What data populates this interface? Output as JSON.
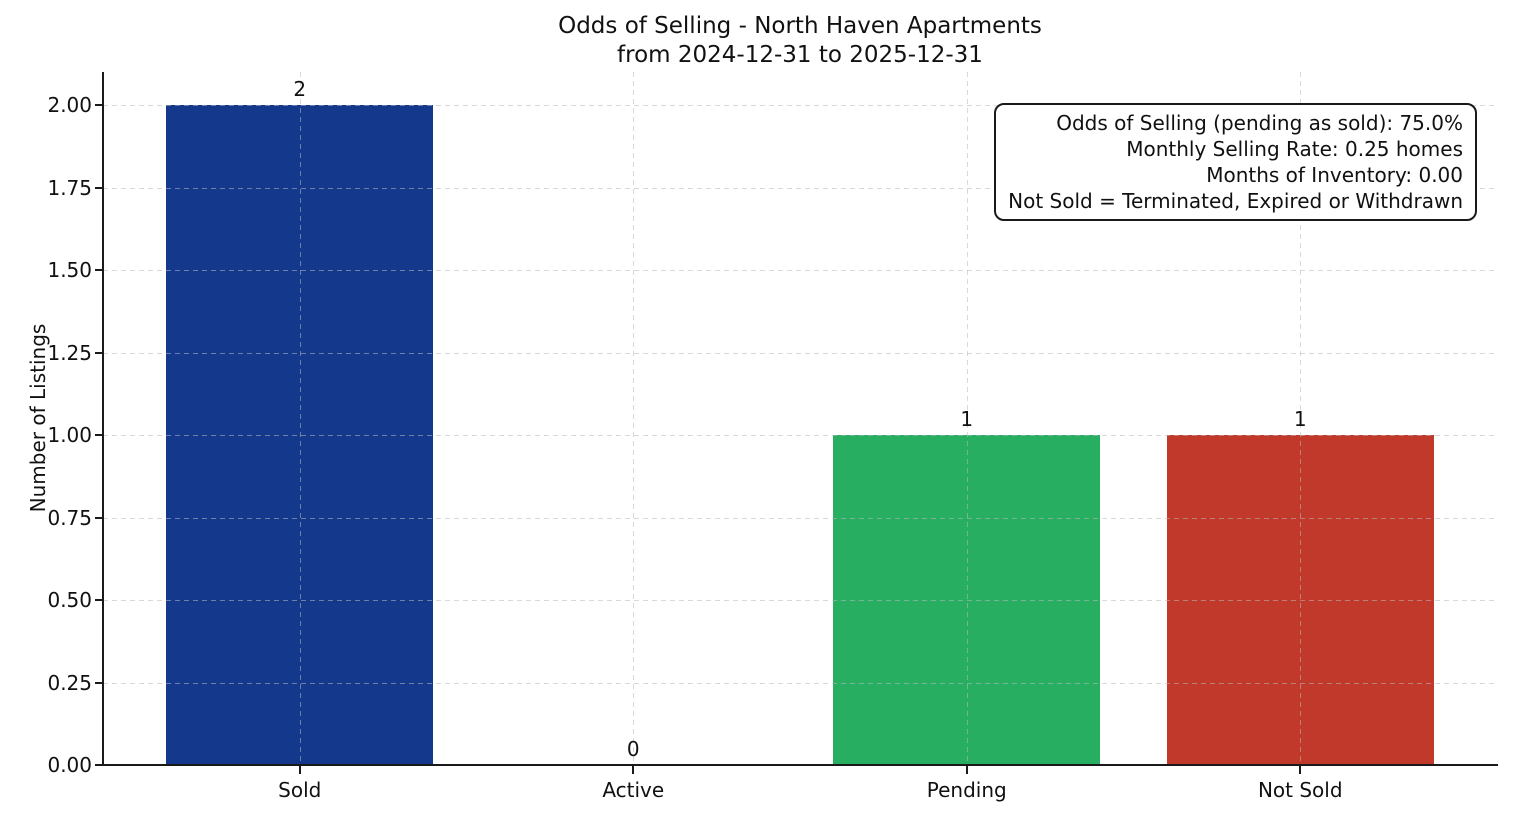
{
  "chart_data": {
    "type": "bar",
    "title": "Odds of Selling - North Haven Apartments",
    "subtitle": "from 2024-12-31 to 2025-12-31",
    "categories": [
      "Sold",
      "Active",
      "Pending",
      "Not Sold"
    ],
    "values": [
      2,
      0,
      1,
      1
    ],
    "value_labels": [
      "2",
      "0",
      "1",
      "1"
    ],
    "bar_colors": [
      "#14388c",
      null,
      "#27ae60",
      "#c0392b"
    ],
    "xlabel": "",
    "ylabel": "Number of Listings",
    "ylim": [
      0,
      2.1
    ],
    "yticks": [
      "0.00",
      "0.25",
      "0.50",
      "0.75",
      "1.00",
      "1.25",
      "1.50",
      "1.75",
      "2.00"
    ],
    "grid": "dashed, horizontal at y ticks and vertical at category centers",
    "legend": "none",
    "annotation": {
      "lines": [
        "Odds of Selling (pending as sold): 75.0%",
        "Monthly Selling Rate: 0.25 homes",
        "Months of Inventory: 0.00",
        "Not Sold = Terminated, Expired or Withdrawn"
      ]
    },
    "colors": {
      "background": "#ffffff",
      "text": "#111111",
      "axis": "#1a1a1a",
      "grid": "#b9b9b9"
    }
  }
}
